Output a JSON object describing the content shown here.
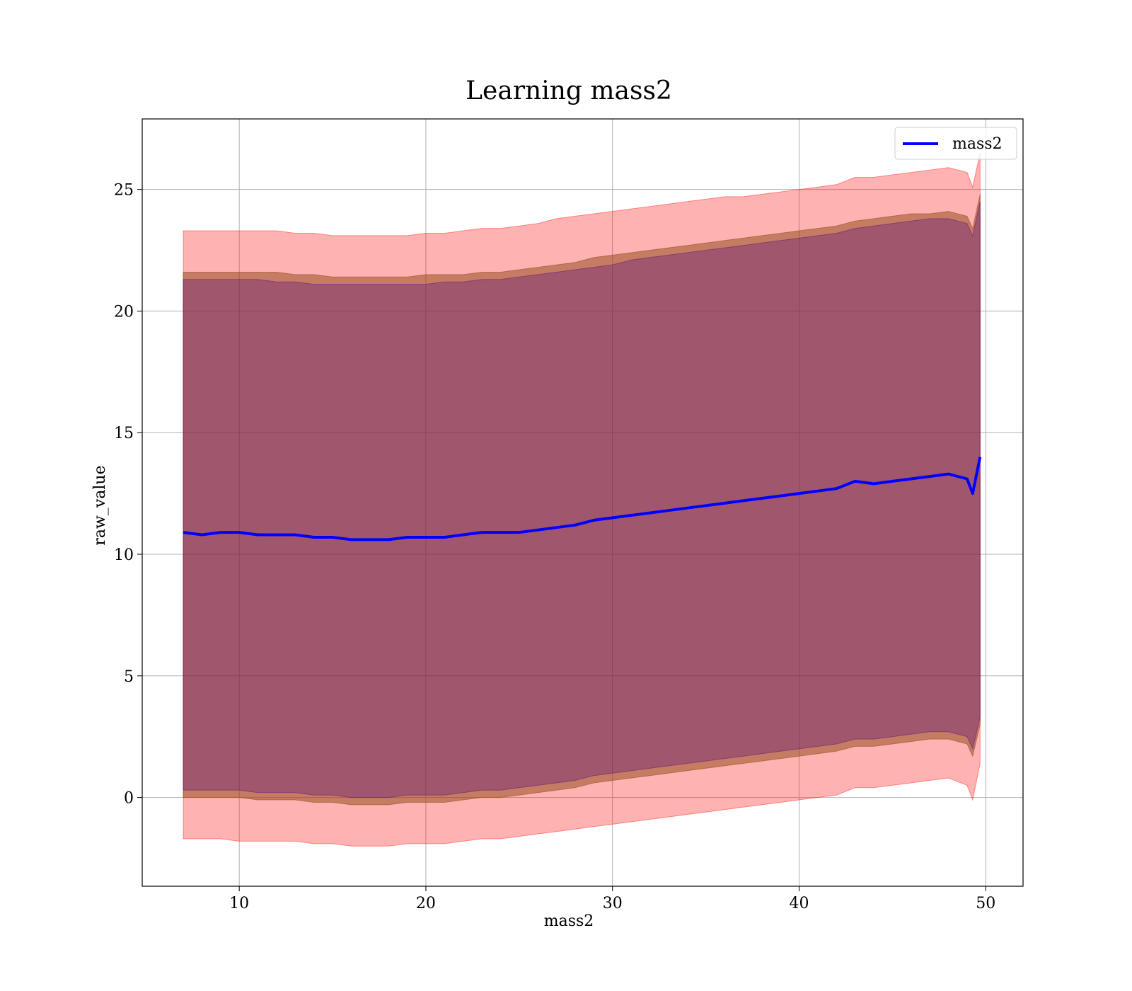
{
  "chart_data": {
    "type": "line",
    "title": "Learning mass2",
    "xlabel": "mass2",
    "ylabel": "raw_value",
    "xlim": [
      4.8,
      52.0
    ],
    "ylim": [
      -3.65,
      27.9
    ],
    "xticks": [
      10,
      20,
      30,
      40,
      50
    ],
    "yticks": [
      0,
      5,
      10,
      15,
      20,
      25
    ],
    "grid": true,
    "legend": {
      "position": "top-right",
      "entries": [
        "mass2"
      ]
    },
    "colors": {
      "mean_line": "#0000ff",
      "outer_band": "#ff0000",
      "mid_band": "#8b4513",
      "inner_band": "#4b0082"
    },
    "x": [
      7,
      8,
      9,
      10,
      11,
      12,
      13,
      14,
      15,
      16,
      17,
      18,
      19,
      20,
      21,
      22,
      23,
      24,
      25,
      26,
      27,
      28,
      29,
      30,
      31,
      32,
      33,
      34,
      35,
      36,
      37,
      38,
      39,
      40,
      41,
      42,
      43,
      44,
      45,
      46,
      47,
      48,
      49,
      49.3,
      49.7
    ],
    "series": [
      {
        "name": "mass2",
        "values": [
          10.9,
          10.8,
          10.9,
          10.9,
          10.8,
          10.8,
          10.8,
          10.7,
          10.7,
          10.6,
          10.6,
          10.6,
          10.7,
          10.7,
          10.7,
          10.8,
          10.9,
          10.9,
          10.9,
          11.0,
          11.1,
          11.2,
          11.4,
          11.5,
          11.6,
          11.7,
          11.8,
          11.9,
          12.0,
          12.1,
          12.2,
          12.3,
          12.4,
          12.5,
          12.6,
          12.7,
          13.0,
          12.9,
          13.0,
          13.1,
          13.2,
          13.3,
          13.1,
          12.5,
          14.0
        ]
      }
    ],
    "bands": {
      "outer_upper": [
        23.3,
        23.3,
        23.3,
        23.3,
        23.3,
        23.3,
        23.2,
        23.2,
        23.1,
        23.1,
        23.1,
        23.1,
        23.1,
        23.2,
        23.2,
        23.3,
        23.4,
        23.4,
        23.5,
        23.6,
        23.8,
        23.9,
        24.0,
        24.1,
        24.2,
        24.3,
        24.4,
        24.5,
        24.6,
        24.7,
        24.7,
        24.8,
        24.9,
        25.0,
        25.1,
        25.2,
        25.5,
        25.5,
        25.6,
        25.7,
        25.8,
        25.9,
        25.7,
        25.1,
        26.5
      ],
      "mid_upper": [
        21.6,
        21.6,
        21.6,
        21.6,
        21.6,
        21.6,
        21.5,
        21.5,
        21.4,
        21.4,
        21.4,
        21.4,
        21.4,
        21.5,
        21.5,
        21.5,
        21.6,
        21.6,
        21.7,
        21.8,
        21.9,
        22.0,
        22.2,
        22.3,
        22.4,
        22.5,
        22.6,
        22.7,
        22.8,
        22.9,
        23.0,
        23.1,
        23.2,
        23.3,
        23.4,
        23.5,
        23.7,
        23.8,
        23.9,
        24.0,
        24.0,
        24.1,
        23.9,
        23.4,
        24.8
      ],
      "inner_upper": [
        21.3,
        21.3,
        21.3,
        21.3,
        21.3,
        21.2,
        21.2,
        21.1,
        21.1,
        21.1,
        21.1,
        21.1,
        21.1,
        21.1,
        21.2,
        21.2,
        21.3,
        21.3,
        21.4,
        21.5,
        21.6,
        21.7,
        21.8,
        21.9,
        22.1,
        22.2,
        22.3,
        22.4,
        22.5,
        22.6,
        22.7,
        22.8,
        22.9,
        23.0,
        23.1,
        23.2,
        23.4,
        23.5,
        23.6,
        23.7,
        23.8,
        23.8,
        23.6,
        23.1,
        24.5
      ],
      "inner_lower": [
        0.3,
        0.3,
        0.3,
        0.3,
        0.2,
        0.2,
        0.2,
        0.1,
        0.1,
        0.0,
        0.0,
        0.0,
        0.1,
        0.1,
        0.1,
        0.2,
        0.3,
        0.3,
        0.4,
        0.5,
        0.6,
        0.7,
        0.9,
        1.0,
        1.1,
        1.2,
        1.3,
        1.4,
        1.5,
        1.6,
        1.7,
        1.8,
        1.9,
        2.0,
        2.1,
        2.2,
        2.4,
        2.4,
        2.5,
        2.6,
        2.7,
        2.7,
        2.5,
        2.0,
        3.3
      ],
      "mid_lower": [
        0.0,
        0.0,
        0.0,
        0.0,
        -0.1,
        -0.1,
        -0.1,
        -0.2,
        -0.2,
        -0.3,
        -0.3,
        -0.3,
        -0.2,
        -0.2,
        -0.2,
        -0.1,
        0.0,
        0.0,
        0.1,
        0.2,
        0.3,
        0.4,
        0.6,
        0.7,
        0.8,
        0.9,
        1.0,
        1.1,
        1.2,
        1.3,
        1.4,
        1.5,
        1.6,
        1.7,
        1.8,
        1.9,
        2.1,
        2.1,
        2.2,
        2.3,
        2.4,
        2.4,
        2.2,
        1.7,
        3.0
      ],
      "outer_lower": [
        -1.7,
        -1.7,
        -1.7,
        -1.8,
        -1.8,
        -1.8,
        -1.8,
        -1.9,
        -1.9,
        -2.0,
        -2.0,
        -2.0,
        -1.9,
        -1.9,
        -1.9,
        -1.8,
        -1.7,
        -1.7,
        -1.6,
        -1.5,
        -1.4,
        -1.3,
        -1.2,
        -1.1,
        -1.0,
        -0.9,
        -0.8,
        -0.7,
        -0.6,
        -0.5,
        -0.4,
        -0.3,
        -0.2,
        -0.1,
        0.0,
        0.1,
        0.4,
        0.4,
        0.5,
        0.6,
        0.7,
        0.8,
        0.5,
        -0.1,
        1.4
      ]
    }
  }
}
